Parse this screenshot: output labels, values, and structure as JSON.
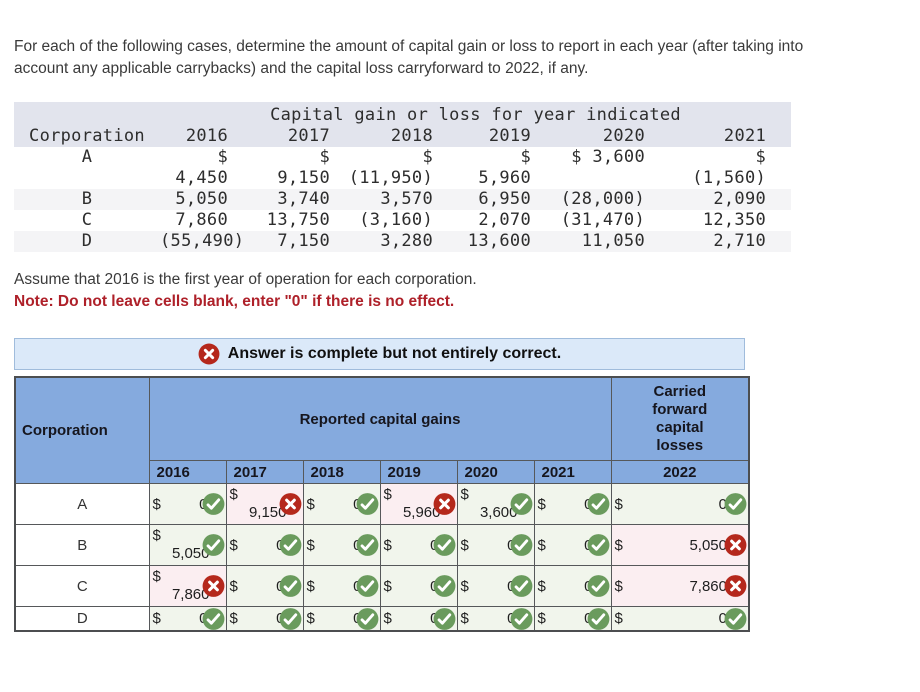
{
  "intro": {
    "lines": [
      "For each of the following cases, determine the amount of capital gain or loss to report in each year (after taking into",
      "account any applicable carrybacks) and the capital loss carryforward to 2022, if any."
    ]
  },
  "given_table": {
    "title": "Capital gain or loss for year indicated",
    "columns": [
      "Corporation",
      "2016",
      "2017",
      "2018",
      "2019",
      "2020",
      "2021"
    ],
    "rows": [
      {
        "corp": "A",
        "cells": [
          [
            "$ 4,450",
            ""
          ],
          [
            "$",
            "9,150"
          ],
          [
            "$",
            "(11,950)"
          ],
          [
            "$",
            "5,960"
          ],
          [
            "$ 3,600",
            ""
          ],
          [
            "$",
            "(1,560)"
          ]
        ]
      },
      {
        "corp": "B",
        "cells": [
          [
            "5,050",
            ""
          ],
          [
            "3,740",
            ""
          ],
          [
            "3,570",
            ""
          ],
          [
            "6,950",
            ""
          ],
          [
            "(28,000)",
            ""
          ],
          [
            "2,090",
            ""
          ]
        ]
      },
      {
        "corp": "C",
        "cells": [
          [
            "7,860",
            ""
          ],
          [
            "13,750",
            ""
          ],
          [
            "(3,160)",
            ""
          ],
          [
            "2,070",
            ""
          ],
          [
            "(31,470)",
            ""
          ],
          [
            "12,350",
            ""
          ]
        ]
      },
      {
        "corp": "D",
        "cells": [
          [
            "(55,490)",
            ""
          ],
          [
            "7,150",
            ""
          ],
          [
            "3,280",
            ""
          ],
          [
            "13,600",
            ""
          ],
          [
            "11,050",
            ""
          ],
          [
            "2,710",
            ""
          ]
        ]
      }
    ]
  },
  "assumption": "Assume that 2016 is the first year of operation for each corporation.",
  "note": "Note: Do not leave cells blank, enter \"0\" if there is no effect.",
  "banner": {
    "icon": "cross",
    "text": "Answer is complete but not entirely correct."
  },
  "answer_table": {
    "corp_header": "Corporation",
    "group_header": "Reported capital gains",
    "years": [
      "2016",
      "2017",
      "2018",
      "2019",
      "2020",
      "2021"
    ],
    "carryforward_header": "Carried forward capital losses",
    "carryforward_year": "2022",
    "currency": "$",
    "rows": [
      {
        "corp": "A",
        "cells": [
          {
            "amount": "0",
            "status": "correct"
          },
          {
            "amount": "9,150",
            "status": "incorrect"
          },
          {
            "amount": "0",
            "status": "correct"
          },
          {
            "amount": "5,960",
            "status": "incorrect"
          },
          {
            "amount": "3,600",
            "status": "correct"
          },
          {
            "amount": "0",
            "status": "correct"
          },
          {
            "amount": "0",
            "status": "correct"
          }
        ]
      },
      {
        "corp": "B",
        "cells": [
          {
            "amount": "5,050",
            "status": "correct"
          },
          {
            "amount": "0",
            "status": "correct"
          },
          {
            "amount": "0",
            "status": "correct"
          },
          {
            "amount": "0",
            "status": "correct"
          },
          {
            "amount": "0",
            "status": "correct"
          },
          {
            "amount": "0",
            "status": "correct"
          },
          {
            "amount": "5,050",
            "status": "incorrect"
          }
        ]
      },
      {
        "corp": "C",
        "cells": [
          {
            "amount": "7,860",
            "status": "incorrect"
          },
          {
            "amount": "0",
            "status": "correct"
          },
          {
            "amount": "0",
            "status": "correct"
          },
          {
            "amount": "0",
            "status": "correct"
          },
          {
            "amount": "0",
            "status": "correct"
          },
          {
            "amount": "0",
            "status": "correct"
          },
          {
            "amount": "7,860",
            "status": "incorrect"
          }
        ]
      },
      {
        "corp": "D",
        "cells": [
          {
            "amount": "0",
            "status": "correct"
          },
          {
            "amount": "0",
            "status": "correct"
          },
          {
            "amount": "0",
            "status": "correct"
          },
          {
            "amount": "0",
            "status": "correct"
          },
          {
            "amount": "0",
            "status": "correct"
          },
          {
            "amount": "0",
            "status": "correct"
          },
          {
            "amount": "0",
            "status": "correct"
          }
        ]
      }
    ]
  },
  "colors": {
    "correct_green": "#6a9b5d",
    "incorrect_red": "#b5281c",
    "header_blue": "#85aade",
    "banner_blue": "#dbe9f9",
    "note_red": "#ae2029",
    "correct_cell_bg": "#f1f5ec",
    "incorrect_cell_bg": "#fbeef1"
  }
}
